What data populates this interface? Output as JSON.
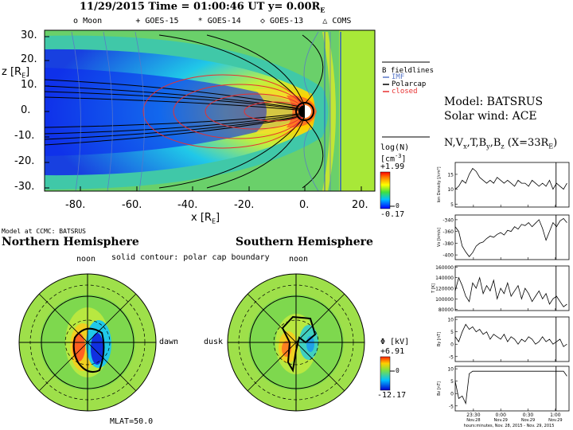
{
  "header": {
    "title": "11/29/2015 Time = 01:00:46 UT y= 0.00R",
    "title_sub": "E",
    "legend": [
      {
        "symbol": "o",
        "label": "Moon"
      },
      {
        "symbol": "+",
        "label": "GOES-15"
      },
      {
        "symbol": "*",
        "label": "GOES-14"
      },
      {
        "symbol": "◇",
        "label": "GOES-13"
      },
      {
        "symbol": "△",
        "label": "COMS"
      }
    ]
  },
  "main_plot": {
    "z_label": "z [R",
    "z_label_sub": "E",
    "x_label": "x [R",
    "x_label_sub": "E",
    "z_ticks": [
      "30.",
      "20.",
      "10.",
      "0.",
      "-10.",
      "-20.",
      "-30."
    ],
    "x_ticks": [
      "-80.",
      "-60.",
      "-40.",
      "-20.",
      "0.",
      "20."
    ]
  },
  "fieldlines_legend": {
    "title": "B fieldlines",
    "items": [
      {
        "label": "IMF",
        "color": "#5a78c8"
      },
      {
        "label": "Polarcap",
        "color": "#000000"
      },
      {
        "label": "closed",
        "color": "#e83030"
      }
    ]
  },
  "density_colorbar": {
    "title": "log(N)",
    "unit": "[cm",
    "unit_sup": "-3",
    "max": "+1.99",
    "min": "-0.17",
    "mid": "0"
  },
  "model": {
    "model_line": "Model: BATSRUS",
    "wind_line": "Solar wind: ACE",
    "params_line": "N,V",
    "params_sub": "x",
    "params_rest": ",T,B",
    "params_sub2": "y",
    "params_rest2": ",B",
    "params_sub3": "z",
    "params_end": " (X=33R",
    "params_end_sub": "E",
    "params_close": ")"
  },
  "iono": {
    "model_note": "Model at CCMC: BATSRUS",
    "north_title": "Northern Hemisphere",
    "south_title": "Southern Hemisphere",
    "contour_note": "solid contour: polar cap boundary",
    "noon_n": "noon",
    "noon_s": "noon",
    "dawn": "dawn",
    "dusk": "dusk",
    "mlat": "MLAT=50.0",
    "phi_label": "Φ [kV]",
    "phi_max": "+6.91",
    "phi_min": "-12.17",
    "phi_mid": "0"
  },
  "chart_data": {
    "type": "line",
    "x_axis_label": "hours:minutes, Nov. 28, 2015 - Nov. 29, 2015",
    "x_ticks": [
      {
        "label": "23:30",
        "date": "Nov.28"
      },
      {
        "label": "0:00",
        "date": "Nov.29"
      },
      {
        "label": "0:30",
        "date": "Nov.29"
      },
      {
        "label": "1:00",
        "date": "Nov.29"
      }
    ],
    "x_range_min": [
      -50,
      75
    ],
    "current_time_min": 60.77,
    "panels": [
      {
        "ylabel": "Ion Density [/cm³]",
        "yticks": [
          "15",
          "10",
          "5"
        ],
        "ylim": [
          4,
          19
        ],
        "values": [
          10,
          11,
          13,
          12,
          15,
          17,
          16,
          14,
          13,
          12,
          13,
          12,
          14,
          13,
          12,
          13,
          12,
          11,
          13,
          12,
          12,
          11,
          13,
          12,
          11,
          12,
          11,
          13,
          10,
          12,
          11,
          10,
          12
        ]
      },
      {
        "ylabel": "Vx [km/s]",
        "yticks": [
          "-340",
          "-360",
          "-380",
          "-400"
        ],
        "ylim": [
          -408,
          -332
        ],
        "values": [
          -352,
          -360,
          -385,
          -395,
          -403,
          -396,
          -385,
          -380,
          -378,
          -372,
          -368,
          -370,
          -365,
          -362,
          -366,
          -358,
          -360,
          -352,
          -356,
          -348,
          -350,
          -345,
          -352,
          -346,
          -340,
          -355,
          -375,
          -360,
          -345,
          -352,
          -342,
          -338,
          -345
        ]
      },
      {
        "ylabel": "T [K]",
        "yticks": [
          "160000",
          "140000",
          "120000",
          "100000",
          "80000"
        ],
        "ylim": [
          78000,
          162000
        ],
        "values": [
          115000,
          140000,
          125000,
          105000,
          95000,
          130000,
          120000,
          140000,
          110000,
          125000,
          115000,
          135000,
          100000,
          120000,
          110000,
          130000,
          105000,
          115000,
          125000,
          100000,
          120000,
          110000,
          95000,
          105000,
          115000,
          100000,
          110000,
          90000,
          100000,
          105000,
          95000,
          85000,
          90000
        ]
      },
      {
        "ylabel": "By [nT]",
        "yticks": [
          "10",
          "5",
          "0",
          "-5"
        ],
        "ylim": [
          -7,
          11
        ],
        "values": [
          3,
          1,
          5,
          8,
          6,
          7,
          5,
          6,
          4,
          5,
          2,
          4,
          3,
          2,
          4,
          1,
          3,
          2,
          0,
          2,
          1,
          3,
          2,
          0,
          1,
          3,
          1,
          2,
          0,
          1,
          2,
          -1,
          0
        ]
      },
      {
        "ylabel": "Bz [nT]",
        "yticks": [
          "10",
          "5",
          "0",
          "-5"
        ],
        "ylim": [
          -7,
          11
        ],
        "values": [
          5,
          -2,
          -1,
          -4,
          8,
          9,
          9,
          9,
          9,
          9,
          9,
          9,
          9,
          9,
          9,
          9,
          9,
          9,
          9,
          9,
          9,
          9,
          9,
          9,
          9,
          9,
          9,
          9,
          9,
          9,
          9,
          9,
          7
        ]
      }
    ]
  }
}
